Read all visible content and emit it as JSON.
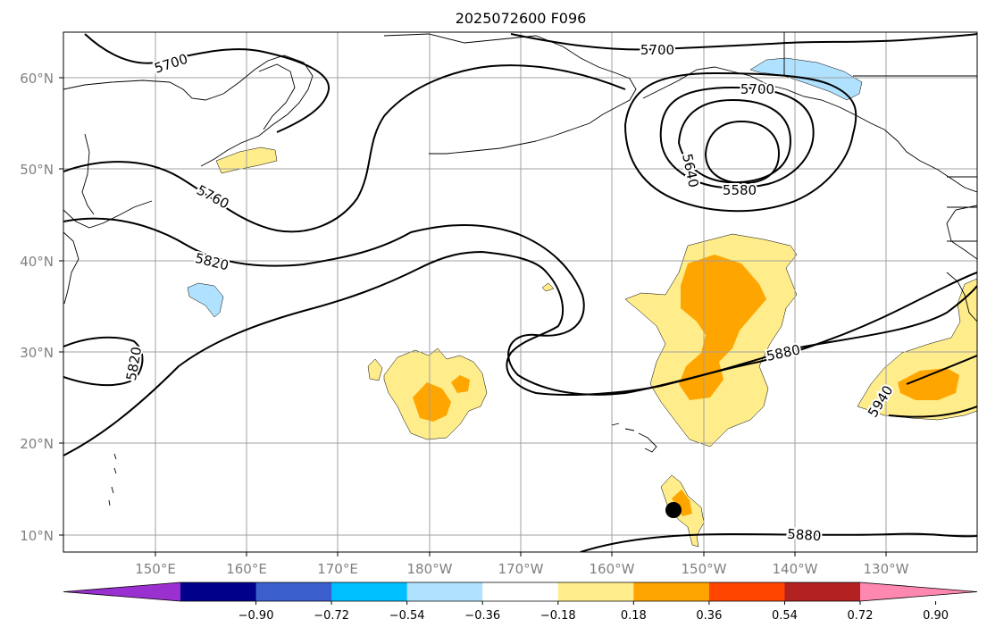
{
  "title": "2025072600 F096",
  "lat_labels": [
    "60°N",
    "50°N",
    "40°N",
    "30°N",
    "20°N",
    "10°N"
  ],
  "lon_labels": [
    "150°E",
    "160°E",
    "170°E",
    "180°W",
    "170°W",
    "160°W",
    "150°W",
    "140°W",
    "130°W"
  ],
  "contour_labels": [
    "5700",
    "5700",
    "5700",
    "5760",
    "5820",
    "5820",
    "5640",
    "5580",
    "5880",
    "5880",
    "5940"
  ],
  "colorbar": {
    "colors": [
      "#9b30d0",
      "#00008b",
      "#3a5fcd",
      "#00bfff",
      "#b0e2ff",
      "#ffffff",
      "#ffec8b",
      "#ffa500",
      "#ff4500",
      "#b22222",
      "#ff88b0"
    ],
    "ticks": [
      "−0.90",
      "−0.72",
      "−0.54",
      "−0.36",
      "−0.18",
      "0.18",
      "0.36",
      "0.54",
      "0.72",
      "0.90"
    ]
  },
  "colors": {
    "positive_low": "#ffec8b",
    "positive_mid": "#ffa500",
    "negative_low": "#b0e2ff"
  },
  "marker": "storm-position-dot"
}
